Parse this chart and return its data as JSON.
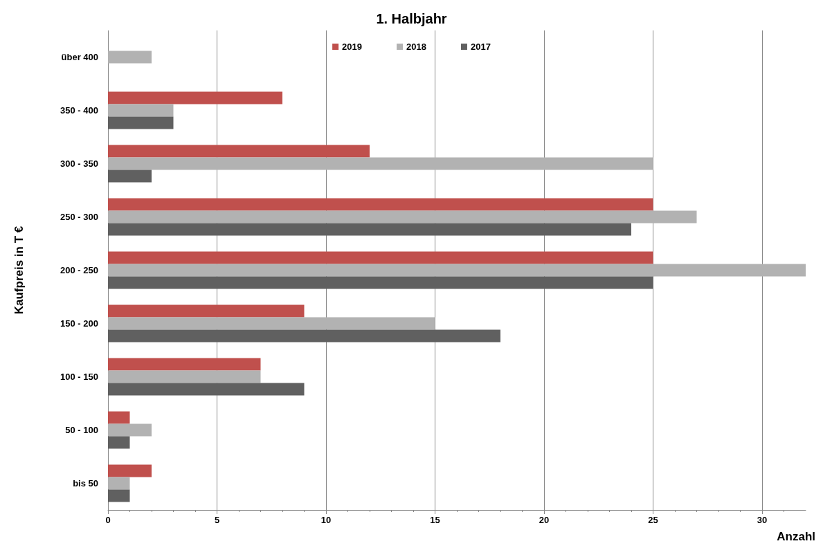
{
  "chart_data": {
    "type": "bar",
    "orientation": "horizontal",
    "title": "1. Halbjahr",
    "xlabel": "Anzahl",
    "ylabel": "Kaufpreis in T €",
    "categories": [
      "über 400",
      "350 - 400",
      "300 - 350",
      "250 - 300",
      "200 - 250",
      "150 - 200",
      "100 - 150",
      "50 - 100",
      "bis 50"
    ],
    "series": [
      {
        "name": "2019",
        "color": "#c0504d",
        "values": [
          null,
          8,
          12,
          25,
          25,
          9,
          7,
          1,
          2
        ]
      },
      {
        "name": "2018",
        "color": "#b2b2b2",
        "values": [
          2,
          3,
          25,
          27,
          32,
          15,
          7,
          2,
          1
        ]
      },
      {
        "name": "2017",
        "color": "#606060",
        "values": [
          null,
          3,
          2,
          24,
          25,
          18,
          9,
          1,
          1
        ]
      }
    ],
    "xlim": [
      0,
      32
    ],
    "xticks": [
      0,
      5,
      10,
      15,
      20,
      25,
      30
    ],
    "grid": "x",
    "legend": "top"
  }
}
